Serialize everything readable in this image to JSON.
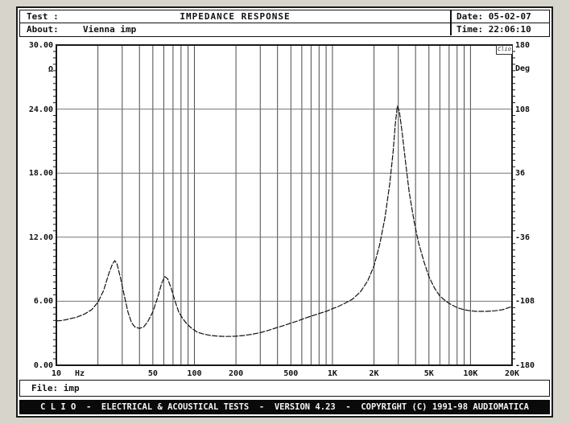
{
  "header": {
    "test_label": "Test :",
    "title": "IMPEDANCE RESPONSE",
    "date_label": "Date:",
    "date_value": "05-02-07",
    "about_label": "About:",
    "about_value": "Vienna imp",
    "time_label": "Time:",
    "time_value": "22:06:10"
  },
  "file_bar": {
    "label": "File:",
    "value": "imp"
  },
  "footer": {
    "text": "C L I O  -  ELECTRICAL & ACOUSTICAL TESTS  -  VERSION 4.23  -  COPYRIGHT (C) 1991-98 AUDIOMATICA"
  },
  "colors": {
    "page_bg": "#d7d4cb",
    "screen_bg": "#ffffff",
    "frame": "#1a1a1a",
    "grid_vertical": "#4a4a4a",
    "grid_horizontal": "#757575",
    "curve": "#111111",
    "footer_bg": "#0a0a0a",
    "footer_text": "#f5f5f5"
  },
  "chart_data": {
    "type": "line",
    "title": "IMPEDANCE RESPONSE",
    "x_scale": "log",
    "x_range_hz": [
      10,
      20000
    ],
    "y_left": {
      "label": "Ω",
      "min": 0,
      "max": 30,
      "ticks": [
        "30.00",
        "24.00",
        "18.00",
        "12.00",
        "6.00",
        "0.00"
      ]
    },
    "y_right": {
      "label": "Deg",
      "min": -180,
      "max": 180,
      "ticks": [
        "180",
        "108",
        "36",
        "-36",
        "-108",
        "-180"
      ]
    },
    "x_ticks": [
      "10",
      "Hz",
      "50",
      "100",
      "200",
      "500",
      "1K",
      "2K",
      "5K",
      "10K",
      "20K"
    ],
    "grid_v_hz": [
      20,
      30,
      40,
      50,
      60,
      70,
      80,
      90,
      100,
      200,
      300,
      400,
      500,
      600,
      700,
      800,
      900,
      1000,
      2000,
      3000,
      4000,
      5000,
      6000,
      7000,
      8000,
      9000,
      10000
    ],
    "grid_h_ohm": [
      6,
      12,
      18,
      24
    ],
    "logo": "Clio",
    "series": [
      {
        "name": "impedance magnitude",
        "unit": "ohm",
        "points": [
          [
            10,
            4.15
          ],
          [
            11,
            4.2
          ],
          [
            12,
            4.3
          ],
          [
            13,
            4.4
          ],
          [
            14,
            4.5
          ],
          [
            16,
            4.8
          ],
          [
            18,
            5.2
          ],
          [
            20,
            5.9
          ],
          [
            22,
            7.0
          ],
          [
            24,
            8.6
          ],
          [
            25.5,
            9.5
          ],
          [
            26.5,
            9.8
          ],
          [
            27.5,
            9.5
          ],
          [
            29,
            8.3
          ],
          [
            31,
            6.6
          ],
          [
            33,
            5.0
          ],
          [
            35,
            4.0
          ],
          [
            37,
            3.6
          ],
          [
            40,
            3.45
          ],
          [
            43,
            3.6
          ],
          [
            46,
            4.1
          ],
          [
            50,
            5.0
          ],
          [
            54,
            6.3
          ],
          [
            58,
            7.7
          ],
          [
            61,
            8.3
          ],
          [
            64,
            8.1
          ],
          [
            68,
            7.2
          ],
          [
            72,
            6.1
          ],
          [
            77,
            5.0
          ],
          [
            82,
            4.4
          ],
          [
            88,
            3.9
          ],
          [
            95,
            3.5
          ],
          [
            105,
            3.1
          ],
          [
            115,
            2.95
          ],
          [
            130,
            2.8
          ],
          [
            150,
            2.72
          ],
          [
            170,
            2.7
          ],
          [
            200,
            2.72
          ],
          [
            230,
            2.8
          ],
          [
            260,
            2.9
          ],
          [
            300,
            3.05
          ],
          [
            350,
            3.3
          ],
          [
            400,
            3.55
          ],
          [
            450,
            3.75
          ],
          [
            500,
            3.95
          ],
          [
            560,
            4.15
          ],
          [
            630,
            4.4
          ],
          [
            700,
            4.6
          ],
          [
            800,
            4.85
          ],
          [
            900,
            5.05
          ],
          [
            1000,
            5.3
          ],
          [
            1100,
            5.5
          ],
          [
            1250,
            5.85
          ],
          [
            1400,
            6.2
          ],
          [
            1600,
            6.9
          ],
          [
            1800,
            7.9
          ],
          [
            2000,
            9.3
          ],
          [
            2200,
            11.3
          ],
          [
            2400,
            13.8
          ],
          [
            2600,
            17.0
          ],
          [
            2750,
            20.0
          ],
          [
            2850,
            22.5
          ],
          [
            2950,
            24.3
          ],
          [
            3050,
            23.8
          ],
          [
            3200,
            21.8
          ],
          [
            3400,
            18.8
          ],
          [
            3600,
            16.2
          ],
          [
            3900,
            13.5
          ],
          [
            4200,
            11.5
          ],
          [
            4600,
            9.7
          ],
          [
            5000,
            8.3
          ],
          [
            5500,
            7.2
          ],
          [
            6000,
            6.5
          ],
          [
            6500,
            6.1
          ],
          [
            7000,
            5.8
          ],
          [
            8000,
            5.4
          ],
          [
            9000,
            5.2
          ],
          [
            10000,
            5.1
          ],
          [
            11000,
            5.05
          ],
          [
            13000,
            5.05
          ],
          [
            15000,
            5.1
          ],
          [
            17000,
            5.2
          ],
          [
            20000,
            5.5
          ]
        ]
      }
    ]
  }
}
